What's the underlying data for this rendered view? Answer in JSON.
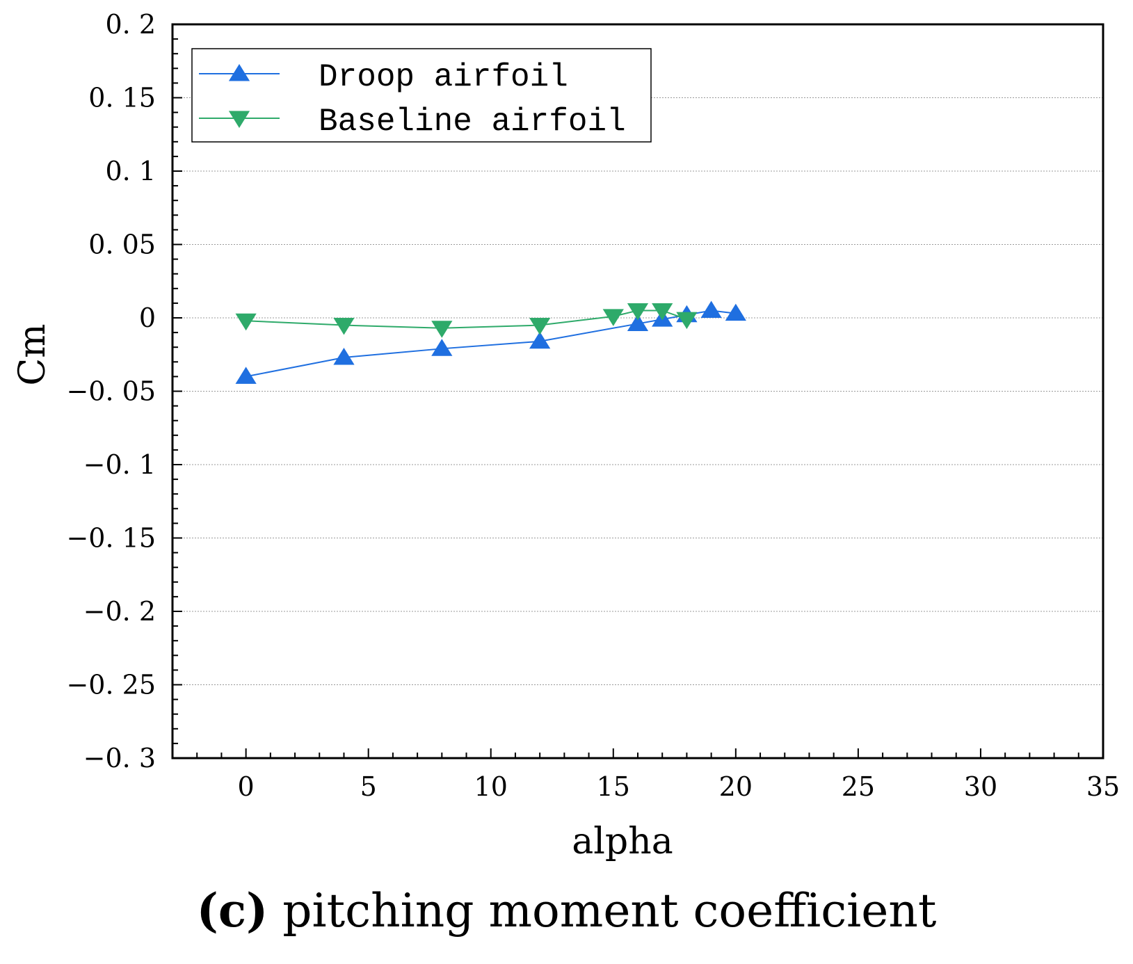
{
  "chart_data": {
    "type": "line",
    "xlabel": "alpha",
    "ylabel": "Cm",
    "xlim": [
      -3,
      35
    ],
    "ylim": [
      -0.3,
      0.2
    ],
    "xticks": [
      0,
      5,
      10,
      15,
      20,
      25,
      30,
      35
    ],
    "xtick_labels": [
      "0",
      "5",
      "10",
      "15",
      "20",
      "25",
      "30",
      "35"
    ],
    "yticks": [
      0.2,
      0.15,
      0.1,
      0.05,
      0,
      -0.05,
      -0.1,
      -0.15,
      -0.2,
      -0.25,
      -0.3
    ],
    "ytick_labels": [
      "0. 2",
      "0. 15",
      "0. 1",
      "0. 05",
      "0",
      "−0. 05",
      "−0. 1",
      "−0. 15",
      "−0. 2",
      "−0. 25",
      "−0. 3"
    ],
    "grid": "horizontal dotted",
    "legend_position": "top-left",
    "series": [
      {
        "name": "Droop airfoil",
        "color": "#1f6fe0",
        "marker": "triangle-up",
        "x": [
          0,
          4,
          8,
          12,
          16,
          17,
          18,
          19,
          20
        ],
        "y": [
          -0.04,
          -0.027,
          -0.021,
          -0.016,
          -0.004,
          -0.001,
          0.002,
          0.005,
          0.003
        ]
      },
      {
        "name": "Baseline airfoil",
        "color": "#2eaa6a",
        "marker": "triangle-down",
        "x": [
          0,
          4,
          8,
          12,
          15,
          16,
          17,
          18
        ],
        "y": [
          -0.002,
          -0.005,
          -0.007,
          -0.005,
          0.001,
          0.005,
          0.005,
          -0.001
        ]
      }
    ]
  },
  "caption": {
    "letter": "(c)",
    "text": " pitching moment coefficient"
  }
}
